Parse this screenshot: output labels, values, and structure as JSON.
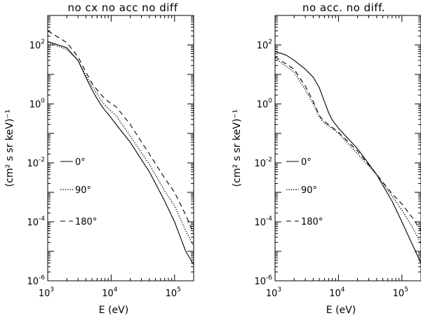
{
  "chart_data": [
    {
      "type": "line",
      "title": "no cx no acc no diff",
      "xlabel": "E (eV)",
      "ylabel": "(cm² s sr keV)⁻¹",
      "xscale": "log",
      "yscale": "log",
      "xlim": [
        1000,
        200000
      ],
      "ylim": [
        1e-06,
        1000
      ],
      "x_ticks": [
        {
          "value": 1000,
          "base": "10",
          "exp": "3"
        },
        {
          "value": 10000,
          "base": "10",
          "exp": "4"
        },
        {
          "value": 100000,
          "base": "10",
          "exp": "5"
        }
      ],
      "y_ticks": [
        {
          "value": 1e-06,
          "base": "10",
          "exp": "-6"
        },
        {
          "value": 0.0001,
          "base": "10",
          "exp": "-4"
        },
        {
          "value": 0.01,
          "base": "10",
          "exp": "-2"
        },
        {
          "value": 1,
          "base": "10",
          "exp": "0"
        },
        {
          "value": 100,
          "base": "10",
          "exp": "2"
        }
      ],
      "legend": [
        {
          "label": "0°",
          "style": "solid"
        },
        {
          "label": "90°",
          "style": "dotted"
        },
        {
          "label": "180°",
          "style": "dashed"
        }
      ],
      "series": [
        {
          "name": "0°",
          "style": "solid",
          "points": [
            [
              1000,
              130
            ],
            [
              2000,
              80
            ],
            [
              3000,
              30
            ],
            [
              4000,
              8
            ],
            [
              5000,
              3
            ],
            [
              6000,
              1.5
            ],
            [
              7000,
              0.9
            ],
            [
              8000,
              0.6
            ],
            [
              9000,
              0.45
            ],
            [
              12000,
              0.2
            ],
            [
              20000,
              0.05
            ],
            [
              40000,
              0.005
            ],
            [
              70000,
              0.0005
            ],
            [
              100000,
              0.0001
            ],
            [
              150000,
              1e-05
            ],
            [
              200000,
              3.5e-06
            ]
          ]
        },
        {
          "name": "90°",
          "style": "dotted",
          "points": [
            [
              1000,
              120
            ],
            [
              2000,
              70
            ],
            [
              3000,
              30
            ],
            [
              4000,
              9
            ],
            [
              5000,
              4
            ],
            [
              6000,
              2.2
            ],
            [
              7000,
              1.3
            ],
            [
              8000,
              0.9
            ],
            [
              9000,
              0.7
            ],
            [
              12000,
              0.4
            ],
            [
              20000,
              0.08
            ],
            [
              40000,
              0.009
            ],
            [
              70000,
              0.0011
            ],
            [
              100000,
              0.00035
            ],
            [
              150000,
              5e-05
            ],
            [
              200000,
              1.5e-05
            ]
          ]
        },
        {
          "name": "180°",
          "style": "dashed",
          "points": [
            [
              1000,
              300
            ],
            [
              2000,
              120
            ],
            [
              3000,
              40
            ],
            [
              4000,
              12
            ],
            [
              5000,
              5
            ],
            [
              6000,
              3
            ],
            [
              7000,
              2
            ],
            [
              8000,
              1.5
            ],
            [
              9000,
              1.2
            ],
            [
              12000,
              0.8
            ],
            [
              20000,
              0.2
            ],
            [
              40000,
              0.02
            ],
            [
              70000,
              0.003
            ],
            [
              100000,
              0.001
            ],
            [
              150000,
              0.00017
            ],
            [
              200000,
              4e-05
            ]
          ]
        }
      ]
    },
    {
      "type": "line",
      "title": "no acc. no diff.",
      "xlabel": "E (eV)",
      "ylabel": "(cm² s sr keV)⁻¹",
      "xscale": "log",
      "yscale": "log",
      "xlim": [
        1000,
        200000
      ],
      "ylim": [
        1e-06,
        1000
      ],
      "x_ticks": [
        {
          "value": 1000,
          "base": "10",
          "exp": "3"
        },
        {
          "value": 10000,
          "base": "10",
          "exp": "4"
        },
        {
          "value": 100000,
          "base": "10",
          "exp": "5"
        }
      ],
      "y_ticks": [
        {
          "value": 1e-06,
          "base": "10",
          "exp": "-6"
        },
        {
          "value": 0.0001,
          "base": "10",
          "exp": "-4"
        },
        {
          "value": 0.01,
          "base": "10",
          "exp": "-2"
        },
        {
          "value": 1,
          "base": "10",
          "exp": "0"
        },
        {
          "value": 100,
          "base": "10",
          "exp": "2"
        }
      ],
      "legend": [
        {
          "label": "0°",
          "style": "solid"
        },
        {
          "label": "90°",
          "style": "dotted"
        },
        {
          "label": "180°",
          "style": "dashed"
        }
      ],
      "series": [
        {
          "name": "0°",
          "style": "solid",
          "points": [
            [
              1000,
              60
            ],
            [
              1500,
              45
            ],
            [
              2000,
              30
            ],
            [
              3000,
              15
            ],
            [
              4000,
              8
            ],
            [
              5000,
              3.5
            ],
            [
              6000,
              1.2
            ],
            [
              7000,
              0.5
            ],
            [
              8000,
              0.28
            ],
            [
              10000,
              0.15
            ],
            [
              20000,
              0.03
            ],
            [
              40000,
              0.004
            ],
            [
              70000,
              0.0005
            ],
            [
              100000,
              0.0001
            ],
            [
              150000,
              1.5e-05
            ],
            [
              200000,
              4e-06
            ]
          ]
        },
        {
          "name": "90°",
          "style": "dotted",
          "points": [
            [
              1000,
              35
            ],
            [
              2000,
              12
            ],
            [
              3000,
              3
            ],
            [
              4000,
              1
            ],
            [
              5000,
              0.35
            ],
            [
              6000,
              0.22
            ],
            [
              7000,
              0.18
            ],
            [
              10000,
              0.1
            ],
            [
              20000,
              0.02
            ],
            [
              40000,
              0.004
            ],
            [
              70000,
              0.00075
            ],
            [
              100000,
              0.00025
            ],
            [
              150000,
              6e-05
            ],
            [
              200000,
              1.8e-05
            ]
          ]
        },
        {
          "name": "180°",
          "style": "dashed",
          "points": [
            [
              1000,
              40
            ],
            [
              2000,
              15
            ],
            [
              3000,
              4
            ],
            [
              4000,
              1.2
            ],
            [
              5000,
              0.4
            ],
            [
              6000,
              0.25
            ],
            [
              7000,
              0.2
            ],
            [
              10000,
              0.11
            ],
            [
              20000,
              0.025
            ],
            [
              40000,
              0.004
            ],
            [
              70000,
              0.0009
            ],
            [
              100000,
              0.0004
            ],
            [
              150000,
              0.00013
            ],
            [
              200000,
              5e-05
            ]
          ]
        }
      ]
    }
  ]
}
